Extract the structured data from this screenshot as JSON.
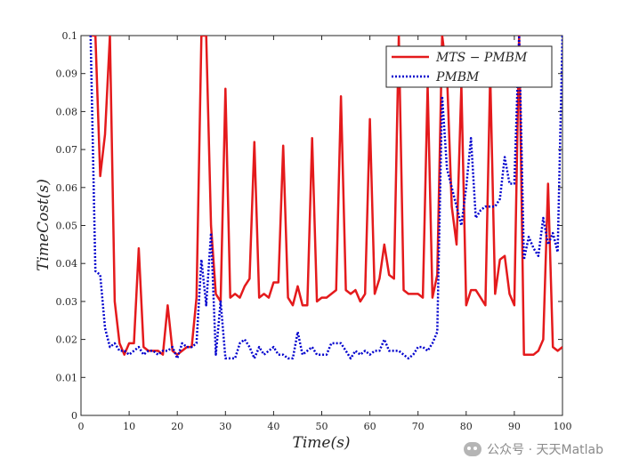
{
  "chart_data": {
    "type": "line",
    "title": "",
    "xlabel": "Time(s)",
    "ylabel": "TimeCost(s)",
    "xlim": [
      0,
      100
    ],
    "ylim": [
      0,
      0.1
    ],
    "xticks": [
      0,
      10,
      20,
      30,
      40,
      50,
      60,
      70,
      80,
      90,
      100
    ],
    "yticks": [
      0,
      0.01,
      0.02,
      0.03,
      0.04,
      0.05,
      0.06,
      0.07,
      0.08,
      0.09,
      0.1
    ],
    "legend_position": "top-right",
    "series": [
      {
        "name": "MTS − PMBM",
        "legend_label": "MTS − PMBM",
        "color": "#e41a1c",
        "style": "solid",
        "x": [
          2,
          3,
          4,
          5,
          6,
          7,
          8,
          9,
          10,
          11,
          12,
          13,
          14,
          15,
          16,
          17,
          18,
          19,
          20,
          21,
          22,
          23,
          24,
          25,
          26,
          27,
          28,
          29,
          30,
          31,
          32,
          33,
          34,
          35,
          36,
          37,
          38,
          39,
          40,
          41,
          42,
          43,
          44,
          45,
          46,
          47,
          48,
          49,
          50,
          51,
          52,
          53,
          54,
          55,
          56,
          57,
          58,
          59,
          60,
          61,
          62,
          63,
          64,
          65,
          66,
          67,
          68,
          69,
          70,
          71,
          72,
          73,
          74,
          75,
          76,
          77,
          78,
          79,
          80,
          81,
          82,
          83,
          84,
          85,
          86,
          87,
          88,
          89,
          90,
          91,
          92,
          93,
          94,
          95,
          96,
          97,
          98,
          99,
          100
        ],
        "y": [
          0.1,
          0.1,
          0.063,
          0.074,
          0.1,
          0.03,
          0.019,
          0.016,
          0.019,
          0.019,
          0.044,
          0.018,
          0.017,
          0.017,
          0.017,
          0.016,
          0.029,
          0.017,
          0.016,
          0.017,
          0.018,
          0.018,
          0.031,
          0.1,
          0.1,
          0.05,
          0.032,
          0.03,
          0.086,
          0.031,
          0.032,
          0.031,
          0.034,
          0.036,
          0.072,
          0.031,
          0.032,
          0.031,
          0.035,
          0.035,
          0.071,
          0.031,
          0.029,
          0.034,
          0.029,
          0.029,
          0.073,
          0.03,
          0.031,
          0.031,
          0.032,
          0.033,
          0.084,
          0.033,
          0.032,
          0.033,
          0.03,
          0.032,
          0.078,
          0.032,
          0.036,
          0.045,
          0.037,
          0.036,
          0.1,
          0.033,
          0.032,
          0.032,
          0.032,
          0.031,
          0.087,
          0.031,
          0.037,
          0.1,
          0.09,
          0.055,
          0.045,
          0.087,
          0.029,
          0.033,
          0.033,
          0.031,
          0.029,
          0.09,
          0.032,
          0.041,
          0.042,
          0.032,
          0.029,
          0.1,
          0.016,
          0.016,
          0.016,
          0.017,
          0.02,
          0.061,
          0.018,
          0.017,
          0.018
        ]
      },
      {
        "name": "PMBM",
        "legend_label": "PMBM",
        "color": "#0000cd",
        "style": "dotted",
        "x": [
          2,
          3,
          4,
          5,
          6,
          7,
          8,
          9,
          10,
          11,
          12,
          13,
          14,
          15,
          16,
          17,
          18,
          19,
          20,
          21,
          22,
          23,
          24,
          25,
          26,
          27,
          28,
          29,
          30,
          31,
          32,
          33,
          34,
          35,
          36,
          37,
          38,
          39,
          40,
          41,
          42,
          43,
          44,
          45,
          46,
          47,
          48,
          49,
          50,
          51,
          52,
          53,
          54,
          55,
          56,
          57,
          58,
          59,
          60,
          61,
          62,
          63,
          64,
          65,
          66,
          67,
          68,
          69,
          70,
          71,
          72,
          73,
          74,
          75,
          76,
          77,
          78,
          79,
          80,
          81,
          82,
          83,
          84,
          85,
          86,
          87,
          88,
          89,
          90,
          91,
          92,
          93,
          94,
          95,
          96,
          97,
          98,
          99,
          100
        ],
        "y": [
          0.1,
          0.038,
          0.037,
          0.023,
          0.018,
          0.019,
          0.017,
          0.017,
          0.016,
          0.017,
          0.018,
          0.016,
          0.017,
          0.017,
          0.016,
          0.017,
          0.017,
          0.018,
          0.015,
          0.019,
          0.018,
          0.018,
          0.019,
          0.041,
          0.029,
          0.048,
          0.016,
          0.03,
          0.015,
          0.015,
          0.015,
          0.019,
          0.02,
          0.018,
          0.015,
          0.018,
          0.016,
          0.017,
          0.018,
          0.016,
          0.016,
          0.015,
          0.015,
          0.022,
          0.016,
          0.017,
          0.018,
          0.016,
          0.016,
          0.016,
          0.019,
          0.019,
          0.019,
          0.017,
          0.015,
          0.017,
          0.016,
          0.017,
          0.016,
          0.017,
          0.017,
          0.02,
          0.017,
          0.017,
          0.017,
          0.016,
          0.015,
          0.016,
          0.018,
          0.018,
          0.017,
          0.019,
          0.022,
          0.084,
          0.065,
          0.06,
          0.055,
          0.05,
          0.06,
          0.073,
          0.052,
          0.054,
          0.055,
          0.055,
          0.055,
          0.057,
          0.068,
          0.061,
          0.061,
          0.1,
          0.041,
          0.047,
          0.044,
          0.042,
          0.052,
          0.045,
          0.048,
          0.043,
          0.1
        ]
      }
    ]
  },
  "watermark": {
    "text": "公众号 · 天天Matlab",
    "icon": "wechat-icon"
  }
}
